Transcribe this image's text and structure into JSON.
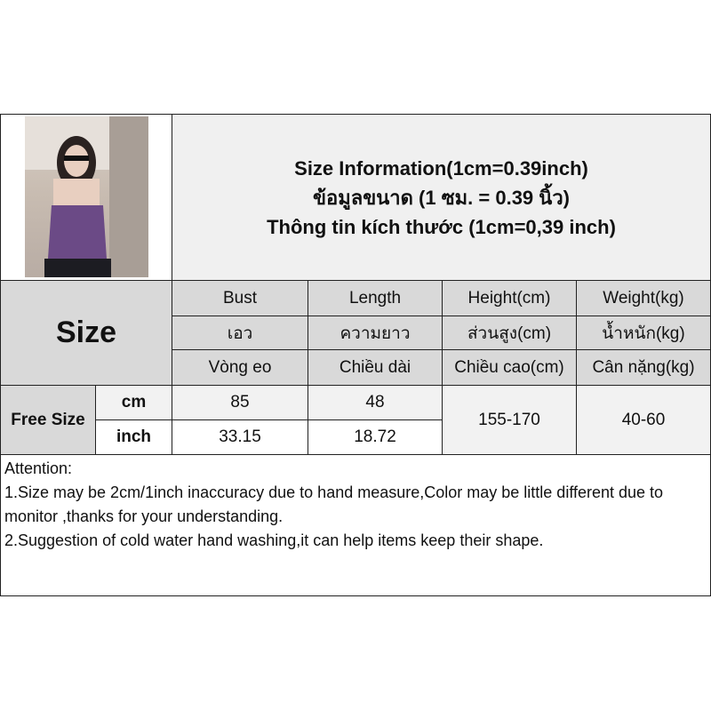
{
  "title_lines": [
    "Size Information(1cm=0.39inch)",
    "ข้อมูลขนาด (1 ซม. = 0.39 นิ้ว)",
    "Thông tin kích thước (1cm=0,39 inch)"
  ],
  "size_label": "Size",
  "columns": [
    {
      "en": "Bust",
      "th": "เอว",
      "vi": "Vòng eo"
    },
    {
      "en": "Length",
      "th": "ความยาว",
      "vi": "Chiều dài"
    },
    {
      "en": "Height(cm)",
      "th": "ส่วนสูง(cm)",
      "vi": "Chiều cao(cm)"
    },
    {
      "en": "Weight(kg)",
      "th": "น้ำหนัก(kg)",
      "vi": "Cân nặng(kg)"
    }
  ],
  "row": {
    "size": "Free Size",
    "unit_cm": "cm",
    "unit_inch": "inch",
    "bust_cm": "85",
    "length_cm": "48",
    "bust_inch": "33.15",
    "length_inch": "18.72",
    "height": "155-170",
    "weight": "40-60"
  },
  "attention": [
    "Attention:",
    "1.Size may be 2cm/1inch inaccuracy due to hand measure,Color may be little different due to monitor ,thanks for your understanding.",
    "2.Suggestion of cold water hand washing,it can help items keep their shape."
  ],
  "colors": {
    "header_bg": "#d9d9d9",
    "title_bg": "#f0f0f0",
    "garment": "#6b4a86"
  }
}
